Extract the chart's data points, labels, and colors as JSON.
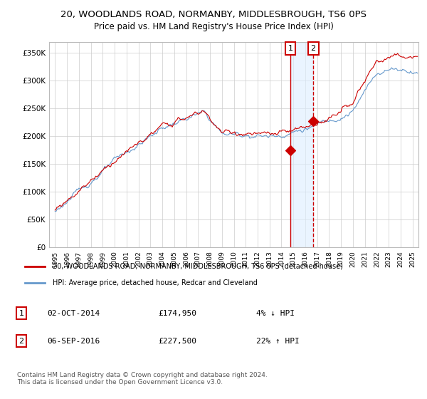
{
  "title": "20, WOODLANDS ROAD, NORMANBY, MIDDLESBROUGH, TS6 0PS",
  "subtitle": "Price paid vs. HM Land Registry's House Price Index (HPI)",
  "legend_line1": "20, WOODLANDS ROAD, NORMANBY, MIDDLESBROUGH, TS6 0PS (detached house)",
  "legend_line2": "HPI: Average price, detached house, Redcar and Cleveland",
  "transaction1_date": "02-OCT-2014",
  "transaction1_price": "£174,950",
  "transaction1_hpi": "4% ↓ HPI",
  "transaction2_date": "06-SEP-2016",
  "transaction2_price": "£227,500",
  "transaction2_hpi": "22% ↑ HPI",
  "copyright_text": "Contains HM Land Registry data © Crown copyright and database right 2024.\nThis data is licensed under the Open Government Licence v3.0.",
  "house_color": "#cc0000",
  "hpi_color": "#6699cc",
  "shade_color": "#ddeeff",
  "transaction1_x": 2014.75,
  "transaction2_x": 2016.67,
  "ylim_min": 0,
  "ylim_max": 370000,
  "xlim_min": 1994.5,
  "xlim_max": 2025.5
}
